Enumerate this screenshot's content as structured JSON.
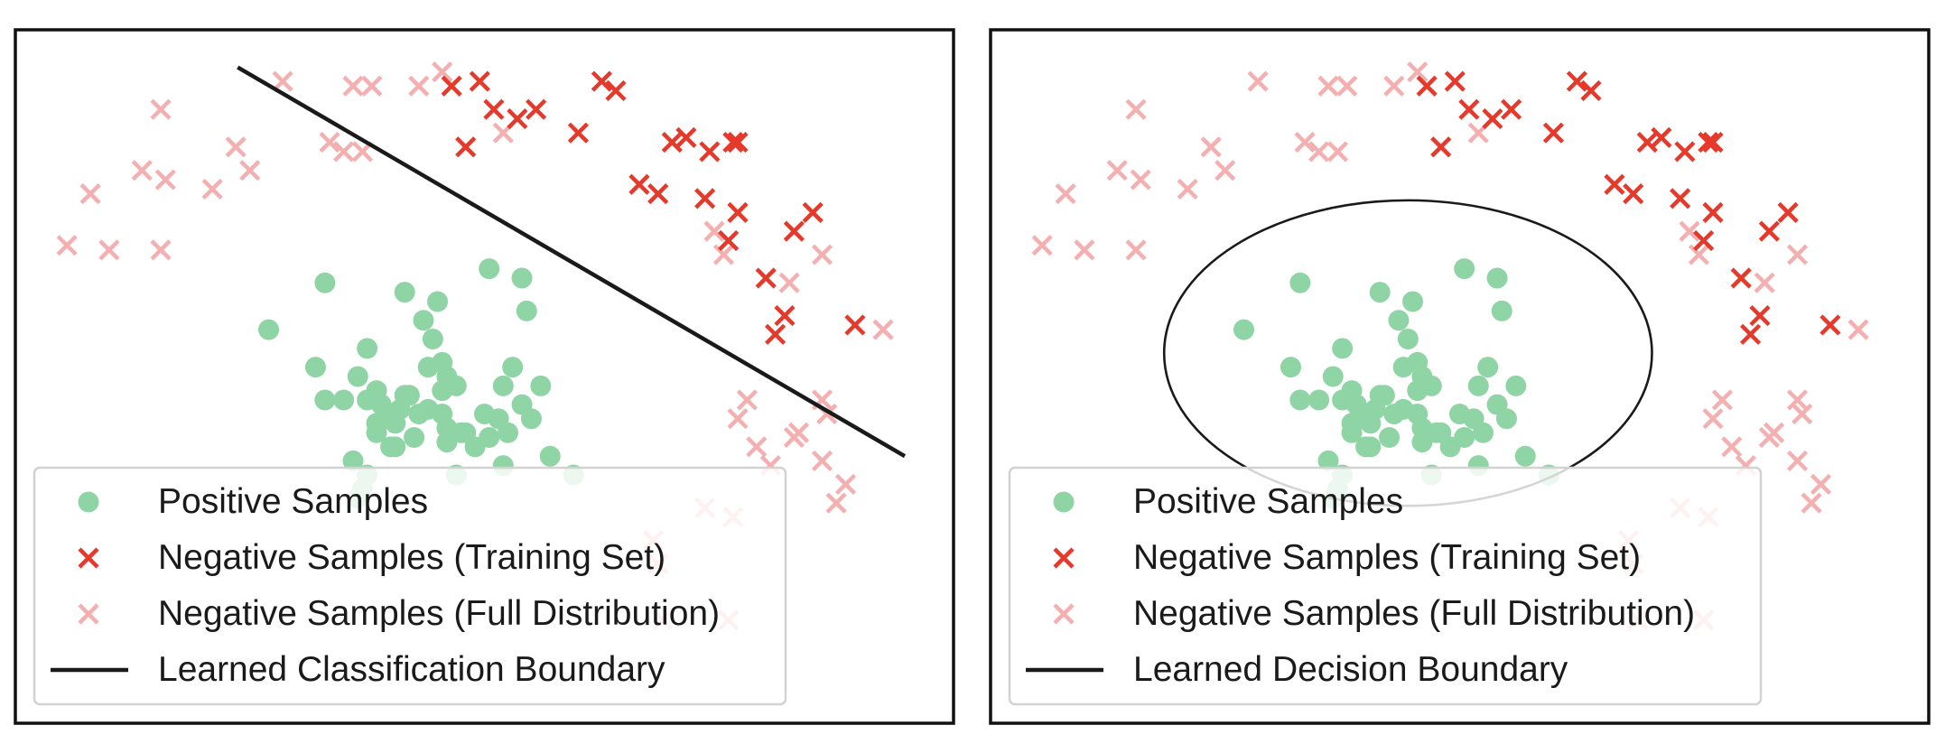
{
  "colors": {
    "positive": "#8fd4a4",
    "negative_train": "#e5392b",
    "negative_full": "#f4b0b0",
    "boundary": "#1a1a1a",
    "frame": "#111111",
    "legend_border": "#d2d2d2"
  },
  "chart_data": [
    {
      "type": "scatter",
      "title": "",
      "xlabel": "",
      "ylabel": "",
      "xlim": [
        0,
        10
      ],
      "ylim": [
        0,
        7.4
      ],
      "grid": false,
      "legend_placement": "lower-left",
      "legend": [
        {
          "marker": "dot",
          "label": "Positive Samples"
        },
        {
          "marker": "x-train",
          "label": "Negative Samples (Training Set)"
        },
        {
          "marker": "x-full",
          "label": "Negative Samples (Full Distribution)"
        },
        {
          "marker": "line",
          "label": "Learned Classification Boundary"
        }
      ],
      "boundary": {
        "kind": "line",
        "points": [
          [
            2.37,
            7.0
          ],
          [
            9.48,
            2.85
          ]
        ]
      },
      "series": [
        {
          "name": "Positive Samples",
          "points": [
            [
              3.3,
              4.7
            ],
            [
              2.7,
              4.2
            ],
            [
              3.75,
              4.0
            ],
            [
              4.15,
              4.6
            ],
            [
              4.35,
              4.3
            ],
            [
              4.5,
              4.5
            ],
            [
              4.45,
              4.1
            ],
            [
              3.2,
              3.8
            ],
            [
              3.65,
              3.7
            ],
            [
              3.5,
              3.45
            ],
            [
              3.85,
              3.55
            ],
            [
              3.9,
              3.4
            ],
            [
              4.05,
              3.2
            ],
            [
              4.2,
              3.5
            ],
            [
              4.3,
              3.3
            ],
            [
              4.4,
              3.8
            ],
            [
              4.6,
              3.7
            ],
            [
              4.7,
              3.6
            ],
            [
              4.55,
              3.3
            ],
            [
              4.8,
              3.1
            ],
            [
              5.0,
              3.3
            ],
            [
              5.15,
              3.25
            ],
            [
              5.25,
              3.1
            ],
            [
              5.4,
              3.4
            ],
            [
              5.5,
              3.25
            ],
            [
              5.6,
              3.6
            ],
            [
              5.2,
              3.6
            ],
            [
              5.3,
              3.8
            ],
            [
              5.05,
              3.05
            ],
            [
              4.9,
              2.95
            ],
            [
              5.2,
              2.75
            ],
            [
              3.6,
              2.8
            ],
            [
              3.75,
              2.65
            ],
            [
              4.05,
              2.95
            ],
            [
              4.25,
              3.05
            ],
            [
              4.6,
              3.0
            ],
            [
              4.75,
              3.1
            ],
            [
              3.95,
              3.25
            ],
            [
              3.85,
              3.1
            ],
            [
              3.3,
              3.45
            ],
            [
              3.75,
              3.45
            ],
            [
              4.1,
              3.35
            ],
            [
              4.4,
              3.35
            ],
            [
              4.55,
              3.85
            ],
            [
              5.05,
              4.85
            ],
            [
              5.45,
              4.4
            ],
            [
              5.4,
              4.75
            ],
            [
              4.55,
              3.55
            ],
            [
              4.6,
              3.15
            ],
            [
              3.85,
              3.2
            ],
            [
              4.15,
              3.5
            ],
            [
              4.7,
              2.65
            ],
            [
              5.7,
              2.85
            ],
            [
              5.95,
              2.65
            ],
            [
              3.7,
              2.5
            ],
            [
              3.65,
              2.4
            ],
            [
              4.0,
              2.95
            ]
          ]
        },
        {
          "name": "Negative Samples (Training Set)",
          "points": [
            [
              4.65,
              6.8
            ],
            [
              4.95,
              6.85
            ],
            [
              5.1,
              6.55
            ],
            [
              5.35,
              6.45
            ],
            [
              5.55,
              6.55
            ],
            [
              6.0,
              6.3
            ],
            [
              4.8,
              6.15
            ],
            [
              6.25,
              6.85
            ],
            [
              6.4,
              6.75
            ],
            [
              7.0,
              6.2
            ],
            [
              7.15,
              6.25
            ],
            [
              7.4,
              6.1
            ],
            [
              7.65,
              6.2
            ],
            [
              6.65,
              5.75
            ],
            [
              6.85,
              5.65
            ],
            [
              7.35,
              5.6
            ],
            [
              7.7,
              5.45
            ],
            [
              7.6,
              5.15
            ],
            [
              8.3,
              5.25
            ],
            [
              8.5,
              5.45
            ],
            [
              8.0,
              4.75
            ],
            [
              8.2,
              4.35
            ],
            [
              8.1,
              4.15
            ],
            [
              8.95,
              4.25
            ],
            [
              7.7,
              6.2
            ]
          ]
        },
        {
          "name": "Negative Samples (Full Distribution)",
          "points": [
            [
              0.55,
              5.1
            ],
            [
              0.8,
              5.65
            ],
            [
              1.0,
              5.05
            ],
            [
              1.35,
              5.9
            ],
            [
              1.55,
              6.55
            ],
            [
              1.6,
              5.8
            ],
            [
              1.55,
              5.05
            ],
            [
              2.1,
              5.7
            ],
            [
              2.35,
              6.15
            ],
            [
              2.5,
              5.9
            ],
            [
              2.85,
              6.85
            ],
            [
              3.35,
              6.2
            ],
            [
              3.5,
              6.1
            ],
            [
              3.7,
              6.1
            ],
            [
              3.6,
              6.8
            ],
            [
              3.8,
              6.8
            ],
            [
              4.3,
              6.8
            ],
            [
              4.55,
              6.95
            ],
            [
              5.2,
              6.3
            ],
            [
              7.45,
              5.25
            ],
            [
              7.55,
              5.0
            ],
            [
              8.25,
              4.7
            ],
            [
              8.6,
              5.0
            ],
            [
              9.25,
              4.2
            ],
            [
              7.7,
              3.25
            ],
            [
              7.8,
              3.45
            ],
            [
              7.9,
              2.95
            ],
            [
              8.05,
              2.75
            ],
            [
              8.3,
              3.05
            ],
            [
              8.35,
              3.1
            ],
            [
              8.6,
              3.45
            ],
            [
              8.6,
              2.8
            ],
            [
              8.65,
              3.3
            ],
            [
              8.85,
              2.55
            ],
            [
              8.75,
              2.35
            ],
            [
              6.8,
              1.95
            ],
            [
              6.85,
              1.7
            ],
            [
              7.35,
              2.3
            ],
            [
              7.65,
              2.2
            ],
            [
              6.9,
              1.1
            ],
            [
              7.6,
              1.1
            ]
          ]
        }
      ]
    },
    {
      "type": "scatter",
      "title": "",
      "xlabel": "",
      "ylabel": "",
      "xlim": [
        0,
        10
      ],
      "ylim": [
        0,
        7.4
      ],
      "grid": false,
      "legend_placement": "lower-left",
      "legend": [
        {
          "marker": "dot",
          "label": "Positive Samples"
        },
        {
          "marker": "x-train",
          "label": "Negative Samples (Training Set)"
        },
        {
          "marker": "x-full",
          "label": "Negative Samples (Full Distribution)"
        },
        {
          "marker": "line",
          "label": "Learned Decision Boundary"
        }
      ],
      "boundary": {
        "kind": "ellipse",
        "center": [
          4.45,
          3.95
        ],
        "radii": [
          2.6,
          1.63
        ]
      },
      "series": [
        {
          "name": "Positive Samples",
          "points": [
            [
              3.3,
              4.7
            ],
            [
              2.7,
              4.2
            ],
            [
              3.75,
              4.0
            ],
            [
              4.15,
              4.6
            ],
            [
              4.35,
              4.3
            ],
            [
              4.5,
              4.5
            ],
            [
              4.45,
              4.1
            ],
            [
              3.2,
              3.8
            ],
            [
              3.65,
              3.7
            ],
            [
              3.5,
              3.45
            ],
            [
              3.85,
              3.55
            ],
            [
              3.9,
              3.4
            ],
            [
              4.05,
              3.2
            ],
            [
              4.2,
              3.5
            ],
            [
              4.3,
              3.3
            ],
            [
              4.4,
              3.8
            ],
            [
              4.6,
              3.7
            ],
            [
              4.7,
              3.6
            ],
            [
              4.55,
              3.3
            ],
            [
              4.8,
              3.1
            ],
            [
              5.0,
              3.3
            ],
            [
              5.15,
              3.25
            ],
            [
              5.25,
              3.1
            ],
            [
              5.4,
              3.4
            ],
            [
              5.5,
              3.25
            ],
            [
              5.6,
              3.6
            ],
            [
              5.2,
              3.6
            ],
            [
              5.3,
              3.8
            ],
            [
              5.05,
              3.05
            ],
            [
              4.9,
              2.95
            ],
            [
              5.2,
              2.75
            ],
            [
              3.6,
              2.8
            ],
            [
              3.75,
              2.65
            ],
            [
              4.05,
              2.95
            ],
            [
              4.25,
              3.05
            ],
            [
              4.6,
              3.0
            ],
            [
              4.75,
              3.1
            ],
            [
              3.95,
              3.25
            ],
            [
              3.85,
              3.1
            ],
            [
              3.3,
              3.45
            ],
            [
              3.75,
              3.45
            ],
            [
              4.1,
              3.35
            ],
            [
              4.4,
              3.35
            ],
            [
              4.55,
              3.85
            ],
            [
              5.05,
              4.85
            ],
            [
              5.45,
              4.4
            ],
            [
              5.4,
              4.75
            ],
            [
              4.55,
              3.55
            ],
            [
              4.6,
              3.15
            ],
            [
              3.85,
              3.2
            ],
            [
              4.15,
              3.5
            ],
            [
              4.7,
              2.65
            ],
            [
              5.7,
              2.85
            ],
            [
              5.95,
              2.65
            ],
            [
              3.7,
              2.5
            ],
            [
              3.65,
              2.4
            ],
            [
              4.0,
              2.95
            ]
          ]
        },
        {
          "name": "Negative Samples (Training Set)",
          "points": [
            [
              4.65,
              6.8
            ],
            [
              4.95,
              6.85
            ],
            [
              5.1,
              6.55
            ],
            [
              5.35,
              6.45
            ],
            [
              5.55,
              6.55
            ],
            [
              6.0,
              6.3
            ],
            [
              4.8,
              6.15
            ],
            [
              6.25,
              6.85
            ],
            [
              6.4,
              6.75
            ],
            [
              7.0,
              6.2
            ],
            [
              7.15,
              6.25
            ],
            [
              7.4,
              6.1
            ],
            [
              7.65,
              6.2
            ],
            [
              6.65,
              5.75
            ],
            [
              6.85,
              5.65
            ],
            [
              7.35,
              5.6
            ],
            [
              7.7,
              5.45
            ],
            [
              7.6,
              5.15
            ],
            [
              8.3,
              5.25
            ],
            [
              8.5,
              5.45
            ],
            [
              8.0,
              4.75
            ],
            [
              8.2,
              4.35
            ],
            [
              8.1,
              4.15
            ],
            [
              8.95,
              4.25
            ],
            [
              7.7,
              6.2
            ]
          ]
        },
        {
          "name": "Negative Samples (Full Distribution)",
          "points": [
            [
              0.55,
              5.1
            ],
            [
              0.8,
              5.65
            ],
            [
              1.0,
              5.05
            ],
            [
              1.35,
              5.9
            ],
            [
              1.55,
              6.55
            ],
            [
              1.6,
              5.8
            ],
            [
              1.55,
              5.05
            ],
            [
              2.1,
              5.7
            ],
            [
              2.35,
              6.15
            ],
            [
              2.5,
              5.9
            ],
            [
              2.85,
              6.85
            ],
            [
              3.35,
              6.2
            ],
            [
              3.5,
              6.1
            ],
            [
              3.7,
              6.1
            ],
            [
              3.6,
              6.8
            ],
            [
              3.8,
              6.8
            ],
            [
              4.3,
              6.8
            ],
            [
              4.55,
              6.95
            ],
            [
              5.2,
              6.3
            ],
            [
              7.45,
              5.25
            ],
            [
              7.55,
              5.0
            ],
            [
              8.25,
              4.7
            ],
            [
              8.6,
              5.0
            ],
            [
              9.25,
              4.2
            ],
            [
              7.7,
              3.25
            ],
            [
              7.8,
              3.45
            ],
            [
              7.9,
              2.95
            ],
            [
              8.05,
              2.75
            ],
            [
              8.3,
              3.05
            ],
            [
              8.35,
              3.1
            ],
            [
              8.6,
              3.45
            ],
            [
              8.6,
              2.8
            ],
            [
              8.65,
              3.3
            ],
            [
              8.85,
              2.55
            ],
            [
              8.75,
              2.35
            ],
            [
              6.8,
              1.95
            ],
            [
              6.85,
              1.7
            ],
            [
              7.35,
              2.3
            ],
            [
              7.65,
              2.2
            ],
            [
              6.9,
              1.1
            ],
            [
              7.6,
              1.1
            ]
          ]
        }
      ]
    }
  ]
}
